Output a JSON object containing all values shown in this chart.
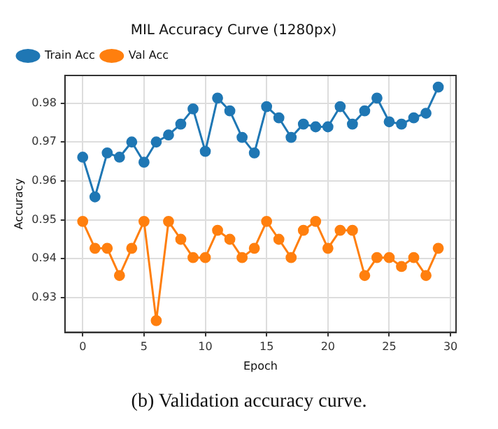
{
  "chart_data": {
    "type": "line",
    "title": "MIL Accuracy Curve (1280px)",
    "xlabel": "Epoch",
    "ylabel": "Accuracy",
    "x": [
      0,
      1,
      2,
      3,
      4,
      5,
      6,
      7,
      8,
      9,
      10,
      11,
      12,
      13,
      14,
      15,
      16,
      17,
      18,
      19,
      20,
      21,
      22,
      23,
      24,
      25,
      26,
      27,
      28,
      29
    ],
    "series": [
      {
        "name": "Train Acc",
        "color": "#1f77b4",
        "values": [
          0.9661,
          0.9559,
          0.9672,
          0.9661,
          0.97,
          0.9648,
          0.97,
          0.9718,
          0.9746,
          0.9785,
          0.9676,
          0.9813,
          0.978,
          0.9712,
          0.9672,
          0.9791,
          0.9762,
          0.9712,
          0.9746,
          0.9739,
          0.9739,
          0.9791,
          0.9746,
          0.978,
          0.9813,
          0.9752,
          0.9746,
          0.9762,
          0.9774,
          0.9841
        ]
      },
      {
        "name": "Val Acc",
        "color": "#ff7f0e",
        "values": [
          0.9496,
          0.9427,
          0.9427,
          0.9357,
          0.9427,
          0.9496,
          0.9241,
          0.9496,
          0.945,
          0.9403,
          0.9403,
          0.9473,
          0.945,
          0.9403,
          0.9427,
          0.9496,
          0.945,
          0.9403,
          0.9473,
          0.9496,
          0.9427,
          0.9473,
          0.9473,
          0.9357,
          0.9403,
          0.9403,
          0.938,
          0.9403,
          0.9357,
          0.9427
        ]
      }
    ],
    "xlim": [
      -1.45,
      30.45
    ],
    "xticks": [
      0,
      5,
      10,
      15,
      20,
      25,
      30
    ],
    "ylim": [
      0.9211,
      0.9871
    ],
    "yticks": [
      0.93,
      0.94,
      0.95,
      0.96,
      0.97,
      0.98
    ],
    "grid": true,
    "legend": "top left",
    "marker": "circle",
    "line_style": "solid",
    "annotations": [
      "(b) Validation accuracy curve."
    ]
  }
}
